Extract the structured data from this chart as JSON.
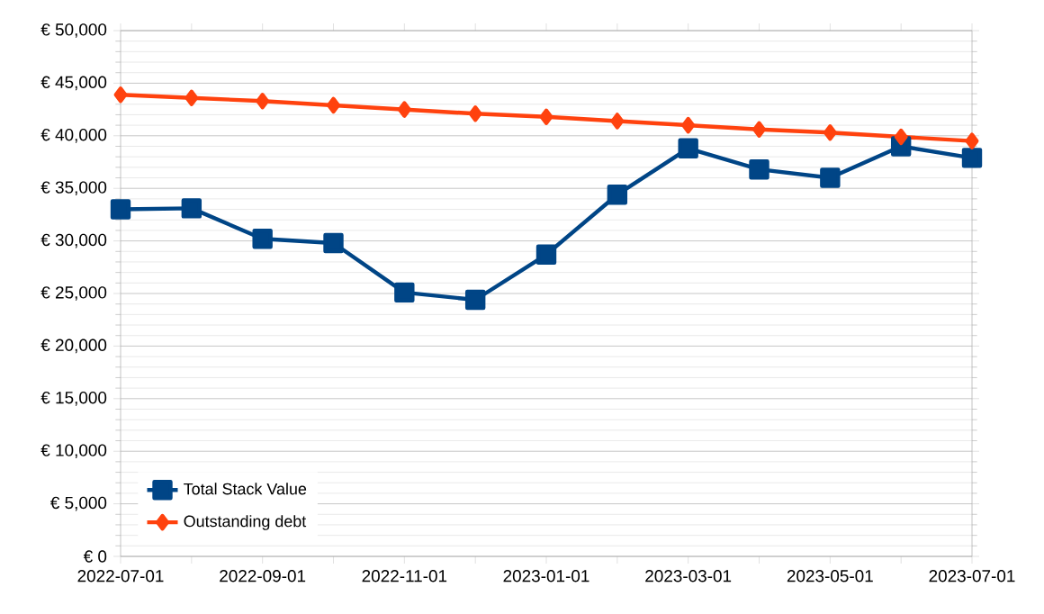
{
  "chart_data": {
    "type": "line",
    "categories": [
      "2022-07-01",
      null,
      "2022-09-01",
      null,
      "2022-11-01",
      null,
      "2023-01-01",
      null,
      "2023-03-01",
      null,
      "2023-05-01",
      null,
      "2023-07-01"
    ],
    "series": [
      {
        "name": "Total Stack Value",
        "color": "#004586",
        "marker": "square",
        "values": [
          33000,
          33100,
          30200,
          29800,
          25100,
          24400,
          28700,
          34400,
          38800,
          36800,
          36000,
          39000,
          37900
        ]
      },
      {
        "name": "Outstanding debt",
        "color": "#ff420e",
        "marker": "diamond",
        "values": [
          43900,
          43600,
          43300,
          42900,
          42500,
          42100,
          41800,
          41400,
          41000,
          40600,
          40300,
          39900,
          39500
        ]
      }
    ],
    "ylim": [
      0,
      50000
    ],
    "yticks": [
      {
        "value": 0,
        "label": "€ 0"
      },
      {
        "value": 5000,
        "label": "€ 5,000"
      },
      {
        "value": 10000,
        "label": "€ 10,000"
      },
      {
        "value": 15000,
        "label": "€ 15,000"
      },
      {
        "value": 20000,
        "label": "€ 20,000"
      },
      {
        "value": 25000,
        "label": "€ 25,000"
      },
      {
        "value": 30000,
        "label": "€ 30,000"
      },
      {
        "value": 35000,
        "label": "€ 35,000"
      },
      {
        "value": 40000,
        "label": "€ 40,000"
      },
      {
        "value": 45000,
        "label": "€ 45,000"
      },
      {
        "value": 50000,
        "label": "€ 50,000"
      }
    ],
    "grid": "y",
    "legend": "bottom left",
    "line_style": "solid"
  }
}
